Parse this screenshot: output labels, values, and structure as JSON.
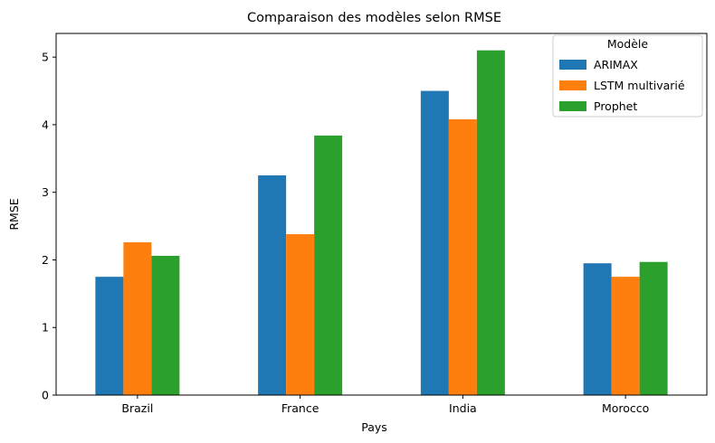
{
  "chart_data": {
    "type": "bar",
    "title": "Comparaison des modèles selon RMSE",
    "xlabel": "Pays",
    "ylabel": "RMSE",
    "categories": [
      "Brazil",
      "France",
      "India",
      "Morocco"
    ],
    "series": [
      {
        "name": "ARIMAX",
        "color": "#1f77b4",
        "values": [
          1.75,
          3.25,
          4.5,
          1.95
        ]
      },
      {
        "name": "LSTM multivarié",
        "color": "#ff7f0e",
        "values": [
          2.26,
          2.38,
          4.08,
          1.75
        ]
      },
      {
        "name": "Prophet",
        "color": "#2ca02c",
        "values": [
          2.06,
          3.84,
          5.1,
          1.97
        ]
      }
    ],
    "ylim": [
      0,
      5.35
    ],
    "yticks": [
      0,
      1,
      2,
      3,
      4,
      5
    ],
    "grid": false,
    "legend": {
      "title": "Modèle",
      "placement": "top-right"
    }
  }
}
